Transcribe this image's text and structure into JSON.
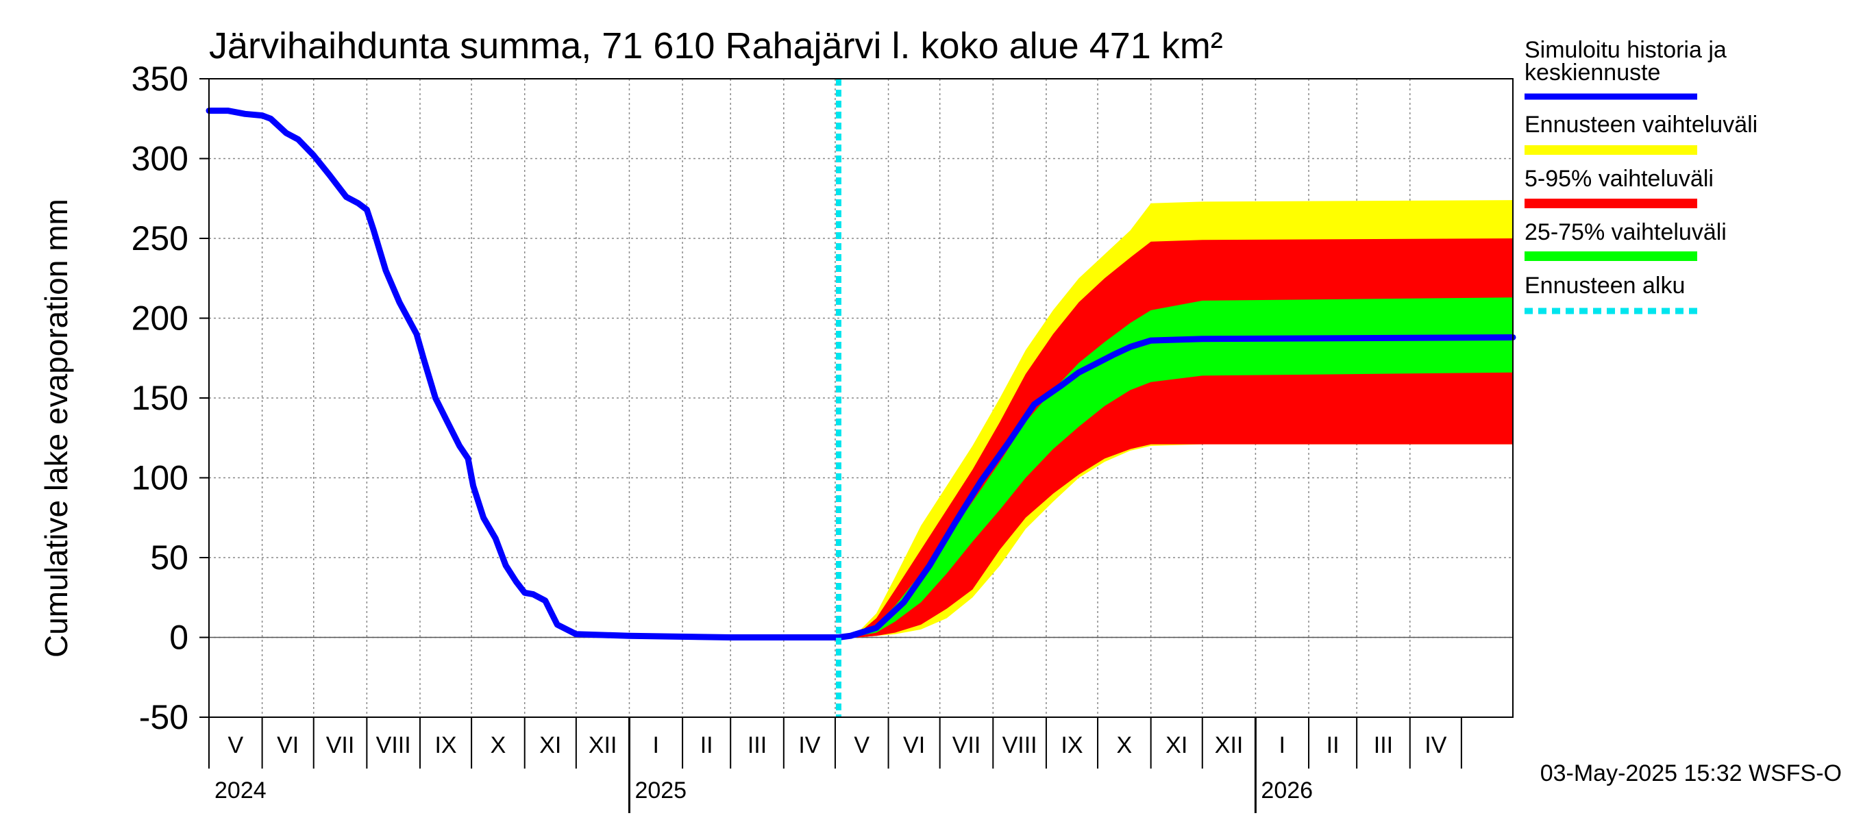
{
  "chart_data": {
    "type": "area",
    "title": "Järvihaihdunta summa, 71 610 Rahajärvi l. koko alue 471 km²",
    "ylabel": "Cumulative lake evaporation   mm",
    "ylim": [
      -50,
      350
    ],
    "yticks": [
      -50,
      0,
      50,
      100,
      150,
      200,
      250,
      300,
      350
    ],
    "xlim": [
      "2024-05-01",
      "2026-05-31"
    ],
    "grid": true,
    "x_months": [
      "V",
      "VI",
      "VII",
      "VIII",
      "IX",
      "X",
      "XI",
      "XII",
      "I",
      "II",
      "III",
      "IV",
      "V",
      "VI",
      "VII",
      "VIII",
      "IX",
      "X",
      "XI",
      "XII",
      "I",
      "II",
      "III",
      "IV"
    ],
    "x_years": [
      {
        "label": "2024",
        "date": "2024-05-01"
      },
      {
        "label": "2025",
        "date": "2025-01-01"
      },
      {
        "label": "2026",
        "date": "2026-01-01"
      }
    ],
    "forecast_start": "2025-05-03",
    "series": [
      {
        "name": "Simuloitu historia ja keskiennuste",
        "color": "#0000ff",
        "x": [
          "2024-05-01",
          "2024-05-12",
          "2024-05-22",
          "2024-06-01",
          "2024-06-06",
          "2024-06-15",
          "2024-06-22",
          "2024-07-01",
          "2024-07-10",
          "2024-07-20",
          "2024-07-27",
          "2024-08-01",
          "2024-08-05",
          "2024-08-12",
          "2024-08-20",
          "2024-08-30",
          "2024-09-03",
          "2024-09-10",
          "2024-09-17",
          "2024-09-24",
          "2024-09-29",
          "2024-10-02",
          "2024-10-08",
          "2024-10-15",
          "2024-10-21",
          "2024-10-27",
          "2024-11-01",
          "2024-11-06",
          "2024-11-13",
          "2024-11-20",
          "2024-12-01",
          "2025-01-01",
          "2025-03-01",
          "2025-05-03",
          "2025-05-10",
          "2025-05-25",
          "2025-06-10",
          "2025-06-25",
          "2025-07-10",
          "2025-07-25",
          "2025-08-10",
          "2025-08-25",
          "2025-09-10",
          "2025-09-20",
          "2025-10-01",
          "2025-10-10",
          "2025-10-20",
          "2025-11-01",
          "2025-12-01",
          "2026-05-31"
        ],
        "y": [
          330,
          330,
          328,
          327,
          325,
          316,
          312,
          302,
          290,
          276,
          272,
          268,
          255,
          230,
          210,
          190,
          175,
          150,
          135,
          120,
          112,
          95,
          75,
          62,
          45,
          35,
          28,
          27,
          23,
          8,
          2,
          1,
          0,
          0,
          1,
          6,
          22,
          45,
          72,
          98,
          122,
          146,
          158,
          166,
          172,
          177,
          182,
          186,
          187,
          188
        ]
      },
      {
        "name": "Ennusteen vaihteluväli",
        "color": "#ffff00",
        "x": [
          "2025-05-03",
          "2025-05-15",
          "2025-05-25",
          "2025-06-05",
          "2025-06-20",
          "2025-07-05",
          "2025-07-20",
          "2025-08-05",
          "2025-08-20",
          "2025-09-05",
          "2025-09-20",
          "2025-10-05",
          "2025-10-20",
          "2025-11-01",
          "2025-12-01",
          "2026-05-31"
        ],
        "upper": [
          0,
          4,
          15,
          38,
          70,
          95,
          120,
          150,
          180,
          205,
          225,
          240,
          255,
          272,
          273,
          274
        ],
        "lower": [
          0,
          0,
          1,
          2,
          5,
          12,
          25,
          45,
          68,
          85,
          100,
          110,
          117,
          120,
          121,
          121
        ]
      },
      {
        "name": "5-95% vaihteluväli",
        "color": "#ff0000",
        "x": [
          "2025-05-03",
          "2025-05-15",
          "2025-05-25",
          "2025-06-05",
          "2025-06-20",
          "2025-07-05",
          "2025-07-20",
          "2025-08-05",
          "2025-08-20",
          "2025-09-05",
          "2025-09-20",
          "2025-10-05",
          "2025-10-20",
          "2025-11-01",
          "2025-12-01",
          "2026-05-31"
        ],
        "upper": [
          0,
          3,
          12,
          30,
          55,
          80,
          105,
          135,
          165,
          190,
          210,
          225,
          238,
          248,
          249,
          250
        ],
        "lower": [
          0,
          0,
          1,
          3,
          8,
          18,
          30,
          55,
          75,
          90,
          102,
          112,
          118,
          121,
          121,
          121
        ]
      },
      {
        "name": "25-75% vaihteluväli",
        "color": "#00ff00",
        "x": [
          "2025-05-03",
          "2025-05-15",
          "2025-05-25",
          "2025-06-05",
          "2025-06-20",
          "2025-07-05",
          "2025-07-20",
          "2025-08-05",
          "2025-08-20",
          "2025-09-05",
          "2025-09-20",
          "2025-10-05",
          "2025-10-20",
          "2025-11-01",
          "2025-12-01",
          "2026-05-31"
        ],
        "upper": [
          0,
          2,
          8,
          20,
          40,
          62,
          85,
          110,
          135,
          155,
          172,
          185,
          197,
          205,
          211,
          213
        ],
        "lower": [
          0,
          1,
          3,
          10,
          22,
          40,
          60,
          80,
          100,
          118,
          132,
          145,
          155,
          160,
          164,
          166
        ]
      }
    ],
    "legend": [
      {
        "label": "Simuloitu historia ja",
        "label2": "keskiennuste",
        "color": "#0000ff",
        "style": "line"
      },
      {
        "label": "Ennusteen vaihteluväli",
        "color": "#ffff00",
        "style": "band"
      },
      {
        "label": "5-95% vaihteluväli",
        "color": "#ff0000",
        "style": "band"
      },
      {
        "label": "25-75% vaihteluväli",
        "color": "#00ff00",
        "style": "band"
      },
      {
        "label": "Ennusteen alku",
        "color": "#00e5ee",
        "style": "dotted"
      }
    ],
    "footer": "03-May-2025 15:32 WSFS-O"
  }
}
